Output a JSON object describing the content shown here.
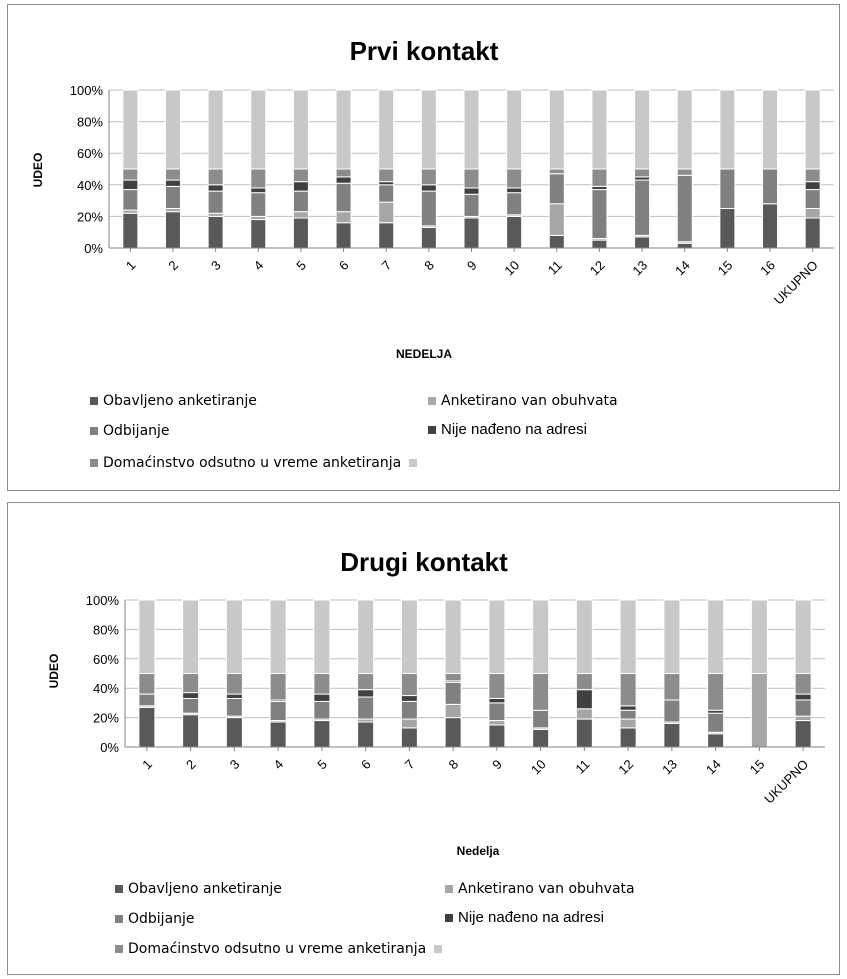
{
  "colors": {
    "obavljeno": "#595959",
    "van_obuhvata": "#a6a6a6",
    "odbijanje": "#808080",
    "nije_nadjeno": "#404040",
    "odsutno": "#8c8c8c",
    "ostalo": "#c8c8c8",
    "gridline": "#bfbfbf",
    "axis": "#868686"
  },
  "chart_data": [
    {
      "type": "bar",
      "stacked": true,
      "percent": true,
      "title": "Prvi kontakt",
      "xlabel": "NEDELJA",
      "ylabel": "UDEO",
      "ylim": [
        0,
        100
      ],
      "yticks": [
        "0%",
        "20%",
        "40%",
        "60%",
        "80%",
        "100%"
      ],
      "grid": true,
      "legend_position": "bottom",
      "categories": [
        "1",
        "2",
        "3",
        "4",
        "5",
        "6",
        "7",
        "8",
        "9",
        "10",
        "11",
        "12",
        "13",
        "14",
        "15",
        "16",
        "UKUPNO"
      ],
      "series": [
        {
          "name": "Obavljeno anketiranje",
          "color_key": "obavljeno",
          "values": [
            22,
            23,
            20,
            18,
            19,
            16,
            16,
            13,
            19,
            20,
            8,
            5,
            7,
            3,
            25,
            28,
            19
          ]
        },
        {
          "name": "Anketirano van obuhvata",
          "color_key": "van_obuhvata",
          "values": [
            2,
            2,
            2,
            2,
            4,
            7,
            13,
            1,
            1,
            1,
            20,
            1,
            1,
            1,
            0,
            0,
            6
          ]
        },
        {
          "name": "Odbijanje",
          "color_key": "odbijanje",
          "values": [
            13,
            14,
            14,
            15,
            13,
            18,
            11,
            22,
            14,
            14,
            19,
            31,
            35,
            42,
            25,
            22,
            12
          ]
        },
        {
          "name": "Nije nađeno na adresi",
          "color_key": "nije_nadjeno",
          "values": [
            6,
            4,
            4,
            3,
            6,
            4,
            2,
            4,
            4,
            3,
            0,
            2,
            2,
            0,
            0,
            0,
            5
          ]
        },
        {
          "name": "Domaćinstvo odsutno u vreme anketiranja",
          "color_key": "odsutno",
          "values": [
            7,
            7,
            10,
            12,
            8,
            5,
            8,
            10,
            12,
            12,
            3,
            11,
            5,
            4,
            0,
            0,
            8
          ]
        },
        {
          "name": "",
          "color_key": "ostalo",
          "values": [
            50,
            50,
            50,
            50,
            50,
            50,
            50,
            50,
            50,
            50,
            50,
            50,
            50,
            50,
            50,
            50,
            50
          ]
        }
      ]
    },
    {
      "type": "bar",
      "stacked": true,
      "percent": true,
      "title": "Drugi kontakt",
      "xlabel": "Nedelja",
      "ylabel": "UDEO",
      "ylim": [
        0,
        100
      ],
      "yticks": [
        "0%",
        "20%",
        "40%",
        "60%",
        "80%",
        "100%"
      ],
      "grid": true,
      "legend_position": "bottom",
      "categories": [
        "1",
        "2",
        "3",
        "4",
        "5",
        "6",
        "7",
        "8",
        "9",
        "10",
        "11",
        "12",
        "13",
        "14",
        "15",
        "UKUPNO"
      ],
      "series": [
        {
          "name": "Obavljeno anketiranje",
          "color_key": "obavljeno",
          "values": [
            27,
            22,
            20,
            17,
            18,
            17,
            13,
            20,
            15,
            12,
            19,
            13,
            16,
            9,
            0,
            18
          ]
        },
        {
          "name": "Anketirano van obuhvata",
          "color_key": "van_obuhvata",
          "values": [
            1,
            1,
            1,
            1,
            1,
            2,
            6,
            9,
            3,
            1,
            7,
            6,
            1,
            1,
            50,
            3
          ]
        },
        {
          "name": "Odbijanje",
          "color_key": "odbijanje",
          "values": [
            8,
            10,
            12,
            13,
            12,
            15,
            12,
            15,
            12,
            12,
            0,
            6,
            15,
            13,
            0,
            11
          ]
        },
        {
          "name": "Nije nađeno na adresi",
          "color_key": "nije_nadjeno",
          "values": [
            0,
            4,
            3,
            1,
            5,
            5,
            4,
            1,
            3,
            0,
            13,
            3,
            0,
            2,
            0,
            4
          ]
        },
        {
          "name": "Domaćinstvo odsutno u vreme anketiranja",
          "color_key": "odsutno",
          "values": [
            14,
            13,
            14,
            18,
            14,
            11,
            15,
            5,
            17,
            25,
            11,
            22,
            18,
            25,
            0,
            14
          ]
        },
        {
          "name": "",
          "color_key": "ostalo",
          "values": [
            50,
            50,
            50,
            50,
            50,
            50,
            50,
            50,
            50,
            50,
            50,
            50,
            50,
            50,
            50,
            50
          ]
        }
      ]
    }
  ],
  "legend": {
    "obavljeno": "Obavljeno anketiranje",
    "van_obuhvata": "Anketirano van obuhvata",
    "odbijanje": "Odbijanje",
    "nije_nadjeno": "Nije nađeno na adresi",
    "odsutno": "Domaćinstvo odsutno u vreme anketiranja",
    "ostalo": ""
  }
}
